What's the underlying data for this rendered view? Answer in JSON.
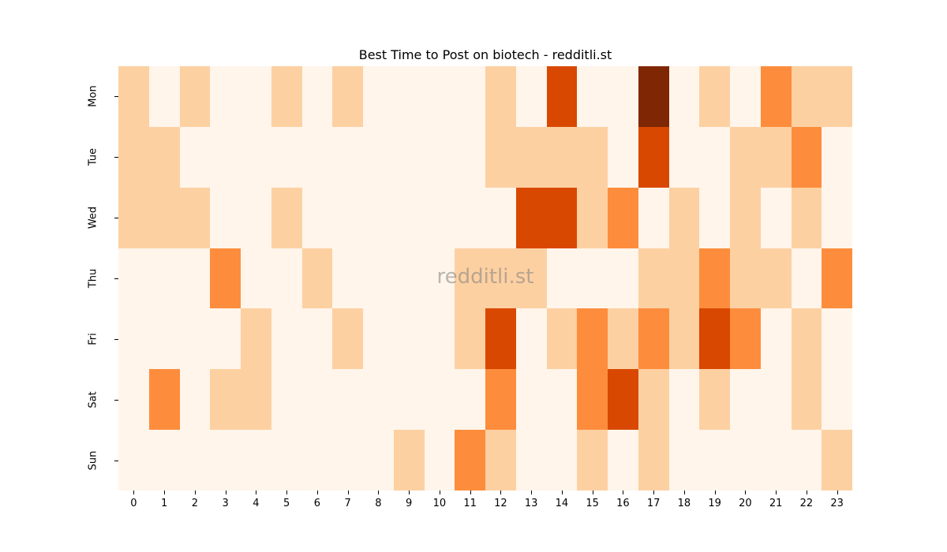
{
  "chart_data": {
    "type": "heatmap",
    "title": "Best Time to Post on biotech - redditli.st",
    "xlabel": "",
    "ylabel": "",
    "x": [
      "0",
      "1",
      "2",
      "3",
      "4",
      "5",
      "6",
      "7",
      "8",
      "9",
      "10",
      "11",
      "12",
      "13",
      "14",
      "15",
      "16",
      "17",
      "18",
      "19",
      "20",
      "21",
      "22",
      "23"
    ],
    "y": [
      "Mon",
      "Tue",
      "Wed",
      "Thu",
      "Fri",
      "Sat",
      "Sun"
    ],
    "colormap": "Oranges",
    "color_levels": [
      "#fff5eb",
      "#fdd0a2",
      "#fd8d3c",
      "#d94801",
      "#7f2704"
    ],
    "values": [
      [
        1,
        0,
        1,
        0,
        0,
        1,
        0,
        1,
        0,
        0,
        0,
        0,
        1,
        0,
        3,
        0,
        0,
        4,
        0,
        1,
        0,
        2,
        1,
        1
      ],
      [
        1,
        1,
        0,
        0,
        0,
        0,
        0,
        0,
        0,
        0,
        0,
        0,
        1,
        1,
        1,
        1,
        0,
        3,
        0,
        0,
        1,
        1,
        2,
        0
      ],
      [
        1,
        1,
        1,
        0,
        0,
        1,
        0,
        0,
        0,
        0,
        0,
        0,
        0,
        3,
        3,
        1,
        2,
        0,
        1,
        0,
        1,
        0,
        1,
        0
      ],
      [
        0,
        0,
        0,
        2,
        0,
        0,
        1,
        0,
        0,
        0,
        0,
        1,
        1,
        1,
        0,
        0,
        0,
        1,
        1,
        2,
        1,
        1,
        0,
        2
      ],
      [
        0,
        0,
        0,
        0,
        1,
        0,
        0,
        1,
        0,
        0,
        0,
        1,
        3,
        0,
        1,
        2,
        1,
        2,
        1,
        3,
        2,
        0,
        1,
        0
      ],
      [
        0,
        2,
        0,
        1,
        1,
        0,
        0,
        0,
        0,
        0,
        0,
        0,
        2,
        0,
        0,
        2,
        3,
        1,
        0,
        1,
        0,
        0,
        1,
        0
      ],
      [
        0,
        0,
        0,
        0,
        0,
        0,
        0,
        0,
        0,
        1,
        0,
        2,
        1,
        0,
        0,
        1,
        0,
        1,
        0,
        0,
        0,
        0,
        0,
        1
      ]
    ],
    "colorbar": false,
    "watermark": "redditli.st"
  }
}
